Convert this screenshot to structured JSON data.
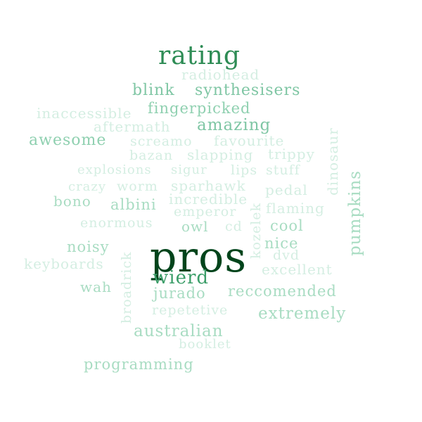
{
  "words": [
    {
      "text": "pros",
      "color": "#00441b"
    },
    {
      "text": "rating",
      "color": "#2e8c55"
    },
    {
      "text": "wierd",
      "color": "#3c9e69"
    },
    {
      "text": "amazing",
      "color": "#7fc6a4"
    },
    {
      "text": "blink",
      "color": "#7fc6a4"
    },
    {
      "text": "synthesisers",
      "color": "#7fc6a4"
    },
    {
      "text": "radiohead",
      "color": "#d4eee2"
    },
    {
      "text": "inaccessible",
      "color": "#d4eee2"
    },
    {
      "text": "fingerpicked",
      "color": "#8fd0b0"
    },
    {
      "text": "aftermath",
      "color": "#d4eee2"
    },
    {
      "text": "awesome",
      "color": "#8fd0b0"
    },
    {
      "text": "screamo",
      "color": "#d4eee2"
    },
    {
      "text": "favourite",
      "color": "#d4eee2"
    },
    {
      "text": "bazan",
      "color": "#d4eee2"
    },
    {
      "text": "slapping",
      "color": "#d4eee2"
    },
    {
      "text": "trippy",
      "color": "#d4eee2"
    },
    {
      "text": "dinosaur",
      "color": "#d4eee2"
    },
    {
      "text": "pumpkins",
      "color": "#a8dcc2"
    },
    {
      "text": "explosions",
      "color": "#d4eee2"
    },
    {
      "text": "sigur",
      "color": "#d4eee2"
    },
    {
      "text": "lips",
      "color": "#d4eee2"
    },
    {
      "text": "stuff",
      "color": "#d4eee2"
    },
    {
      "text": "crazy",
      "color": "#d4eee2"
    },
    {
      "text": "worm",
      "color": "#d4eee2"
    },
    {
      "text": "sparhawk",
      "color": "#d4eee2"
    },
    {
      "text": "pedal",
      "color": "#d4eee2"
    },
    {
      "text": "incredible",
      "color": "#d4eee2"
    },
    {
      "text": "bono",
      "color": "#a8dcc2"
    },
    {
      "text": "albini",
      "color": "#a8dcc2"
    },
    {
      "text": "flaming",
      "color": "#d4eee2"
    },
    {
      "text": "emperor",
      "color": "#d4eee2"
    },
    {
      "text": "kozelek",
      "color": "#d4eee2"
    },
    {
      "text": "enormous",
      "color": "#d4eee2"
    },
    {
      "text": "owl",
      "color": "#a8dcc2"
    },
    {
      "text": "cd",
      "color": "#d4eee2"
    },
    {
      "text": "cool",
      "color": "#a8dcc2"
    },
    {
      "text": "noisy",
      "color": "#a8dcc2"
    },
    {
      "text": "broadrick",
      "color": "#d4eee2"
    },
    {
      "text": "nice",
      "color": "#a8dcc2"
    },
    {
      "text": "dvd",
      "color": "#d4eee2"
    },
    {
      "text": "keyboards",
      "color": "#d4eee2"
    },
    {
      "text": "excellent",
      "color": "#d4eee2"
    },
    {
      "text": "wah",
      "color": "#a8dcc2"
    },
    {
      "text": "jurado",
      "color": "#a8dcc2"
    },
    {
      "text": "reccomended",
      "color": "#a8dcc2"
    },
    {
      "text": "repetetive",
      "color": "#d4eee2"
    },
    {
      "text": "extremely",
      "color": "#a8dcc2"
    },
    {
      "text": "australian",
      "color": "#a8dcc2"
    },
    {
      "text": "booklet",
      "color": "#d4eee2"
    },
    {
      "text": "programming",
      "color": "#a8dcc2"
    }
  ]
}
